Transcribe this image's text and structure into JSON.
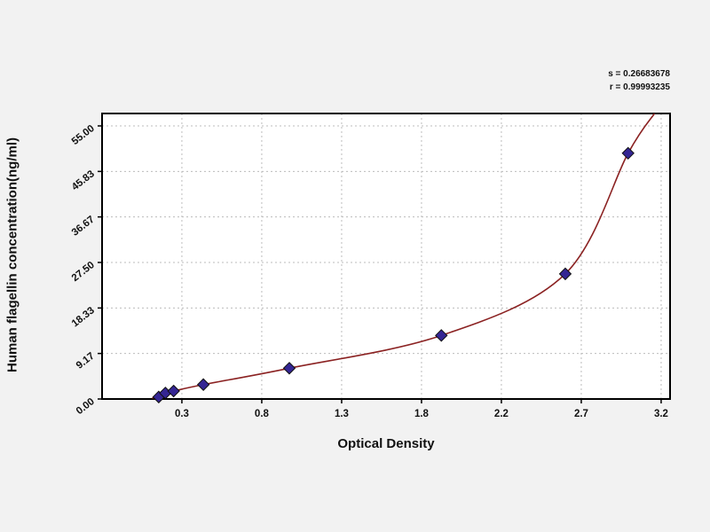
{
  "page": {
    "background": "#f2f2f2"
  },
  "stats": {
    "line1": "s = 0.26683678",
    "line2": "r = 0.99993235"
  },
  "chart_data": {
    "type": "scatter",
    "title": "",
    "subtitle": "",
    "xlabel": "Optical Density",
    "ylabel": "Human flagellin concentration(ng/ml)",
    "xlim": [
      -0.183,
      3.254
    ],
    "ylim": [
      0,
      57.5
    ],
    "grid": true,
    "legend": null,
    "x_ticks": {
      "values": [
        0.3,
        0.7833,
        1.2667,
        1.75,
        2.2333,
        2.7167,
        3.2
      ],
      "labels": [
        "0.3",
        "0.8",
        "1.3",
        "1.8",
        "2.2",
        "2.7",
        "3.2"
      ]
    },
    "y_ticks": {
      "values": [
        0,
        9.17,
        18.33,
        27.5,
        36.67,
        45.83,
        55
      ],
      "labels": [
        "0.00",
        "9.17",
        "18.33",
        "27.50",
        "36.67",
        "45.83",
        "55.00"
      ]
    },
    "points": [
      [
        0.16,
        0.4
      ],
      [
        0.2,
        1.2
      ],
      [
        0.25,
        1.6
      ],
      [
        0.43,
        2.9
      ],
      [
        0.95,
        6.2
      ],
      [
        1.87,
        12.8
      ],
      [
        2.62,
        25.2
      ],
      [
        3.0,
        49.5
      ]
    ],
    "curve_points": [
      [
        0.12,
        0.2
      ],
      [
        0.16,
        0.4
      ],
      [
        0.2,
        1.2
      ],
      [
        0.25,
        1.6
      ],
      [
        0.43,
        2.9
      ],
      [
        0.95,
        6.2
      ],
      [
        1.87,
        12.8
      ],
      [
        2.62,
        25.2
      ],
      [
        3.0,
        49.5
      ],
      [
        3.16,
        57.5
      ]
    ],
    "colors": {
      "curve": "#8b2222",
      "marker": "#342593",
      "marker_stroke": "#111111",
      "grid": "#bcbcbc",
      "frame": "#000000",
      "plot_background": "#ffffff"
    }
  }
}
